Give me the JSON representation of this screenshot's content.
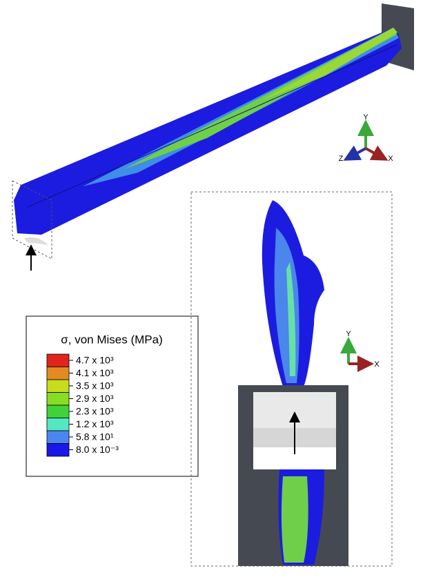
{
  "legend": {
    "title": "σ, von Mises (MPa)",
    "entries": [
      {
        "label": "4.7 x 10³",
        "color": "#e0251c"
      },
      {
        "label": "4.1 x 10³",
        "color": "#e38a22"
      },
      {
        "label": "3.5 x 10³",
        "color": "#c5dd1d"
      },
      {
        "label": "2.9 x 10³",
        "color": "#86dd22"
      },
      {
        "label": "2.3 x 10³",
        "color": "#3fd23a"
      },
      {
        "label": "1.2 x 10³",
        "color": "#55e6c2"
      },
      {
        "label": "5.8 x 10¹",
        "color": "#4b86ee"
      },
      {
        "label": "8.0 x 10⁻³",
        "color": "#1a18e6"
      }
    ]
  },
  "triad_main": {
    "y": "Y",
    "z": "Z",
    "x": "X"
  },
  "triad_detail": {
    "y": "Y",
    "x": "X"
  }
}
